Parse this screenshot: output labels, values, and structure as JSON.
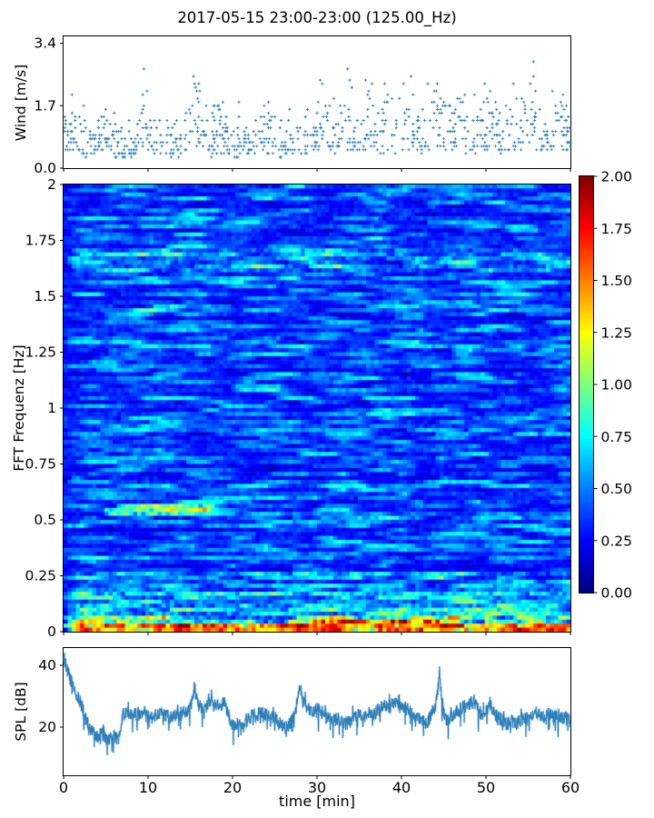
{
  "title": "2017-05-15 23:00-23:00 (125.00_Hz)",
  "colors": {
    "accent": "#1f77b4",
    "axis": "#000000",
    "background": "#ffffff"
  },
  "xaxis": {
    "label": "time [min]",
    "lim": [
      0,
      60
    ],
    "ticks": [
      {
        "v": 0,
        "label": "0"
      },
      {
        "v": 10,
        "label": "10"
      },
      {
        "v": 20,
        "label": "20"
      },
      {
        "v": 30,
        "label": "30"
      },
      {
        "v": 40,
        "label": "40"
      },
      {
        "v": 50,
        "label": "50"
      },
      {
        "v": 60,
        "label": "60"
      }
    ]
  },
  "chart_data": [
    {
      "id": "wind",
      "type": "scatter",
      "description": "Wind speed scatter, '+' markers, noisy band 0.3-1.4 m/s with gust episodes up to ~3.2 m/s",
      "ylabel": "Wind [m/s]",
      "ylim": [
        0,
        3.59
      ],
      "yticks": [
        {
          "v": 0.0,
          "label": "0.0"
        },
        {
          "v": 1.7,
          "label": "1.7"
        },
        {
          "v": 3.4,
          "label": "3.4"
        }
      ],
      "marker": "plus",
      "color": "#1f77b4",
      "seed": 20170515,
      "n_points": 900,
      "base_min": 0.32,
      "base_span": 0.8,
      "outlier_prob": 0.06,
      "outlier_gain": 1.35,
      "quantize_y": 0.1,
      "quantize_x": 0.125,
      "clamp": [
        0.1,
        3.32
      ],
      "gusts": [
        [
          1.3,
          1.0,
          0.8
        ],
        [
          4.9,
          0.9,
          0.6
        ],
        [
          9.7,
          1.4,
          0.85
        ],
        [
          15.6,
          1.6,
          0.95
        ],
        [
          18.6,
          0.8,
          0.5
        ],
        [
          21.2,
          0.9,
          0.55
        ],
        [
          24.2,
          1.2,
          0.45
        ],
        [
          27.0,
          1.2,
          0.6
        ],
        [
          30.6,
          1.4,
          0.85
        ],
        [
          33.8,
          1.6,
          0.8
        ],
        [
          36.2,
          1.2,
          0.7
        ],
        [
          38.8,
          1.6,
          0.75
        ],
        [
          41.2,
          1.2,
          0.8
        ],
        [
          43.8,
          1.3,
          0.9
        ],
        [
          46.8,
          1.5,
          1.0
        ],
        [
          50.3,
          1.5,
          0.95
        ],
        [
          53.2,
          1.3,
          0.75
        ],
        [
          55.8,
          1.6,
          0.95
        ],
        [
          58.6,
          1.0,
          0.85
        ]
      ]
    },
    {
      "id": "fft_spectrogram",
      "type": "heatmap",
      "description": "FFT spectrogram, jet colormap 0-2, mostly blue with cyan streaks; hot red/orange bands below ~0.1 Hz; bright ridge near 0.55 Hz between 5-18 min",
      "ylabel": "FFT Frequenz [Hz]",
      "ylim": [
        0,
        2
      ],
      "yticks": [
        {
          "v": 0,
          "label": "0"
        },
        {
          "v": 0.25,
          "label": "0.25"
        },
        {
          "v": 0.5,
          "label": "0.5"
        },
        {
          "v": 0.75,
          "label": "0.75"
        },
        {
          "v": 1,
          "label": "1"
        },
        {
          "v": 1.25,
          "label": "1.25"
        },
        {
          "v": 1.5,
          "label": "1.5"
        },
        {
          "v": 1.75,
          "label": "1.75"
        },
        {
          "v": 2,
          "label": "2"
        }
      ],
      "colormap": "jet",
      "vmin": 0,
      "vmax": 2,
      "grid": {
        "cols": 124,
        "rows": 112
      },
      "seed": 7771,
      "base_level": 0.15,
      "row_noise": 0.12,
      "cell_noise": 0.34,
      "smooth": 0.55,
      "streak_prob": 0.075,
      "streak_amp": [
        0.15,
        0.45
      ],
      "dark_prob": 0.06,
      "features": [
        [
          1.61,
          1.72,
          0,
          60,
          0.4,
          0.35
        ],
        [
          1.43,
          1.47,
          7,
          20,
          0.3,
          0.5
        ],
        [
          0.52,
          0.575,
          5,
          18,
          0.85,
          0.75
        ],
        [
          0.54,
          0.56,
          9,
          13,
          0.5,
          0.5
        ],
        [
          0.5,
          0.54,
          27,
          42,
          0.45,
          0.5
        ],
        [
          0.46,
          0.49,
          0,
          2.5,
          0.5,
          0.7
        ],
        [
          0.12,
          0.27,
          0,
          60,
          0.35,
          0.45
        ],
        [
          0.155,
          0.185,
          0,
          60,
          0.55,
          0.65
        ],
        [
          0.06,
          0.12,
          0,
          60,
          0.55,
          0.5
        ],
        [
          0.03,
          0.075,
          0,
          12,
          0.85,
          0.6
        ],
        [
          0.03,
          0.075,
          26,
          36,
          0.95,
          0.65
        ],
        [
          0.03,
          0.075,
          38,
          52,
          0.9,
          0.6
        ],
        [
          0.03,
          0.075,
          52,
          60,
          0.7,
          0.5
        ],
        [
          0.032,
          0.05,
          0,
          60,
          0.8,
          0.5
        ],
        [
          0.0,
          0.032,
          0,
          60,
          1.55,
          0.92
        ]
      ],
      "colorbar": {
        "ticks": [
          {
            "v": 0.0,
            "label": "0.00"
          },
          {
            "v": 0.25,
            "label": "0.25"
          },
          {
            "v": 0.5,
            "label": "0.50"
          },
          {
            "v": 0.75,
            "label": "0.75"
          },
          {
            "v": 1.0,
            "label": "1.00"
          },
          {
            "v": 1.25,
            "label": "1.25"
          },
          {
            "v": 1.5,
            "label": "1.50"
          },
          {
            "v": 1.75,
            "label": "1.75"
          },
          {
            "v": 2.0,
            "label": "2.00"
          }
        ]
      }
    },
    {
      "id": "spl",
      "type": "line",
      "description": "Sound pressure level trace: starts ~43 dB, drops to ~16 dB by min 3-6, steps up to ~24 dB at min 7, fluctuates 20-28 dB with spikes at ~15.5, 28 and 44 min",
      "ylabel": "SPL [dB]",
      "ylim": [
        4.4,
        45.6
      ],
      "yticks": [
        {
          "v": 20,
          "label": "20"
        },
        {
          "v": 40,
          "label": "40"
        }
      ],
      "color": "#1f77b4",
      "seed": 424242,
      "x_step_min": 0.5,
      "substeps": 15,
      "noise_amp": 2.2,
      "dip_prob": 0.07,
      "dip_max": 6,
      "spike_prob": 0.03,
      "spike_max": 4,
      "mean_series": [
        43,
        38,
        34,
        31,
        28,
        24,
        20,
        18,
        17,
        18,
        16,
        16,
        17,
        16,
        24,
        25,
        24,
        24,
        24,
        25,
        24,
        23,
        24,
        25,
        24,
        23,
        23,
        24,
        24,
        25,
        26,
        33,
        27,
        26,
        27,
        30,
        27,
        26,
        29,
        24,
        21,
        21,
        21,
        22,
        23,
        24,
        24,
        25,
        24,
        23,
        23,
        22,
        20,
        20,
        22,
        26,
        33,
        28,
        26,
        25,
        26,
        25,
        24,
        23,
        22,
        23,
        22,
        21,
        22,
        23,
        24,
        23,
        25,
        24,
        25,
        26,
        27,
        26,
        28,
        27,
        26,
        27,
        25,
        24,
        23,
        22,
        21,
        24,
        27,
        36,
        24,
        22,
        24,
        25,
        26,
        27,
        27,
        29,
        26,
        24,
        25,
        28,
        24,
        23,
        22,
        21,
        22,
        21,
        22,
        23,
        23,
        24,
        25,
        24,
        23,
        24,
        23,
        24,
        23,
        23,
        23
      ]
    }
  ]
}
